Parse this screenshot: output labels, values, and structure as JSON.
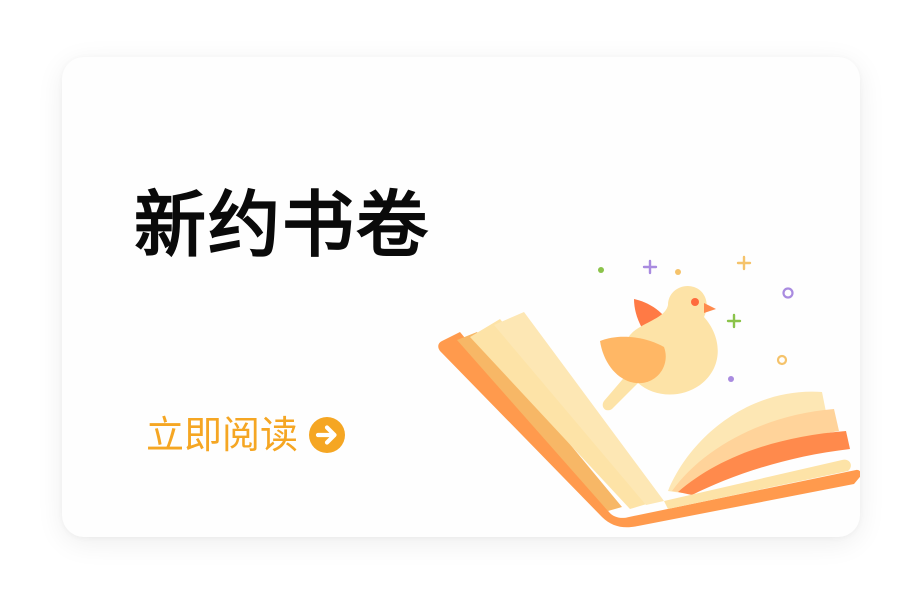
{
  "card": {
    "title": "新约书卷",
    "cta_label": "立即阅读",
    "cta_icon": "arrow-right-circle-icon",
    "illustration": "open-book-with-bird-illustration"
  },
  "colors": {
    "title": "#0a0a0a",
    "accent": "#f5a623",
    "book_orange": "#ff9a4d",
    "book_cream": "#fde3a7",
    "bird": "#ffb765",
    "sparkle_purple": "#a98be0",
    "sparkle_green": "#8bc34a"
  }
}
